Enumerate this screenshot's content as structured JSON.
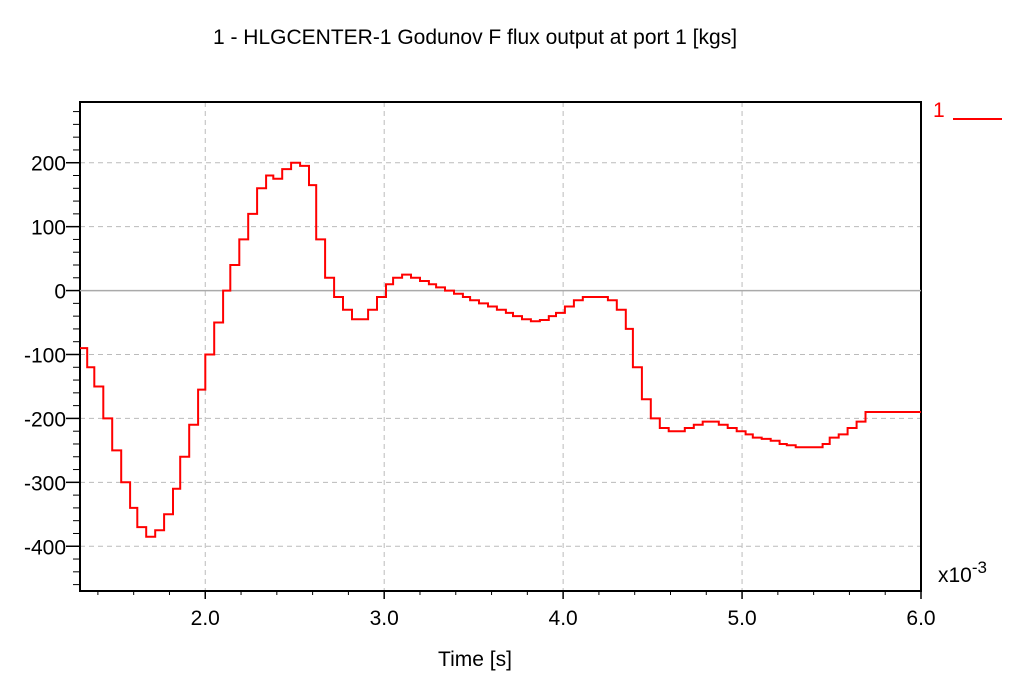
{
  "chart_data": {
    "type": "line",
    "step": true,
    "title": "1 - HLGCENTER-1 Godunov F flux output at port 1 [kgs]",
    "xlabel": "Time [s]",
    "ylabel": "",
    "x_multiplier": "x10",
    "x_multiplier_exp": "-3",
    "xlim": [
      1.3,
      6.0
    ],
    "ylim": [
      -470,
      295
    ],
    "grid": true,
    "x_ticks": [
      2.0,
      3.0,
      4.0,
      5.0,
      6.0
    ],
    "x_tick_labels": [
      "2.0",
      "3.0",
      "4.0",
      "5.0",
      "6.0"
    ],
    "y_ticks": [
      200,
      100,
      0,
      -100,
      -200,
      -300,
      -400
    ],
    "y_tick_labels": [
      "200",
      "100",
      "0",
      "-100",
      "-200",
      "-300",
      "-400"
    ],
    "legend_position": "top-right",
    "colors": {
      "series": "#ff0000",
      "grid": "#bbbbbb",
      "axis": "#000000"
    },
    "series": [
      {
        "name": "1",
        "x": [
          1.3,
          1.34,
          1.38,
          1.43,
          1.48,
          1.53,
          1.58,
          1.62,
          1.67,
          1.72,
          1.77,
          1.82,
          1.86,
          1.91,
          1.96,
          2.0,
          2.05,
          2.1,
          2.14,
          2.19,
          2.24,
          2.29,
          2.34,
          2.38,
          2.43,
          2.48,
          2.53,
          2.58,
          2.62,
          2.67,
          2.72,
          2.77,
          2.82,
          2.86,
          2.91,
          2.96,
          3.01,
          3.05,
          3.1,
          3.15,
          3.2,
          3.25,
          3.29,
          3.34,
          3.39,
          3.44,
          3.48,
          3.53,
          3.58,
          3.63,
          3.68,
          3.72,
          3.77,
          3.82,
          3.87,
          3.92,
          3.96,
          4.01,
          4.06,
          4.11,
          4.15,
          4.2,
          4.25,
          4.3,
          4.35,
          4.39,
          4.44,
          4.49,
          4.54,
          4.59,
          4.63,
          4.68,
          4.73,
          4.78,
          4.82,
          4.87,
          4.92,
          4.97,
          5.02,
          5.06,
          5.11,
          5.16,
          5.21,
          5.25,
          5.3,
          5.35,
          5.4,
          5.45,
          5.49,
          5.54,
          5.59,
          5.64,
          5.69,
          5.73,
          5.78,
          5.83,
          5.88,
          5.92,
          5.97,
          6.0
        ],
        "values": [
          -90,
          -120,
          -150,
          -200,
          -250,
          -300,
          -340,
          -370,
          -385,
          -375,
          -350,
          -310,
          -260,
          -210,
          -155,
          -100,
          -50,
          0,
          40,
          80,
          120,
          160,
          180,
          175,
          190,
          200,
          195,
          165,
          80,
          20,
          -10,
          -30,
          -45,
          -45,
          -30,
          -10,
          10,
          20,
          25,
          20,
          15,
          10,
          5,
          0,
          -5,
          -10,
          -15,
          -20,
          -25,
          -30,
          -35,
          -40,
          -45,
          -48,
          -46,
          -40,
          -35,
          -25,
          -15,
          -10,
          -10,
          -10,
          -15,
          -30,
          -60,
          -120,
          -170,
          -200,
          -215,
          -220,
          -220,
          -215,
          -210,
          -205,
          -205,
          -210,
          -215,
          -220,
          -225,
          -230,
          -232,
          -235,
          -240,
          -242,
          -245,
          -245,
          -245,
          -240,
          -230,
          -225,
          -215,
          -205,
          -190,
          -190,
          -190,
          -190,
          -190,
          -190,
          -190,
          -190
        ]
      }
    ]
  }
}
